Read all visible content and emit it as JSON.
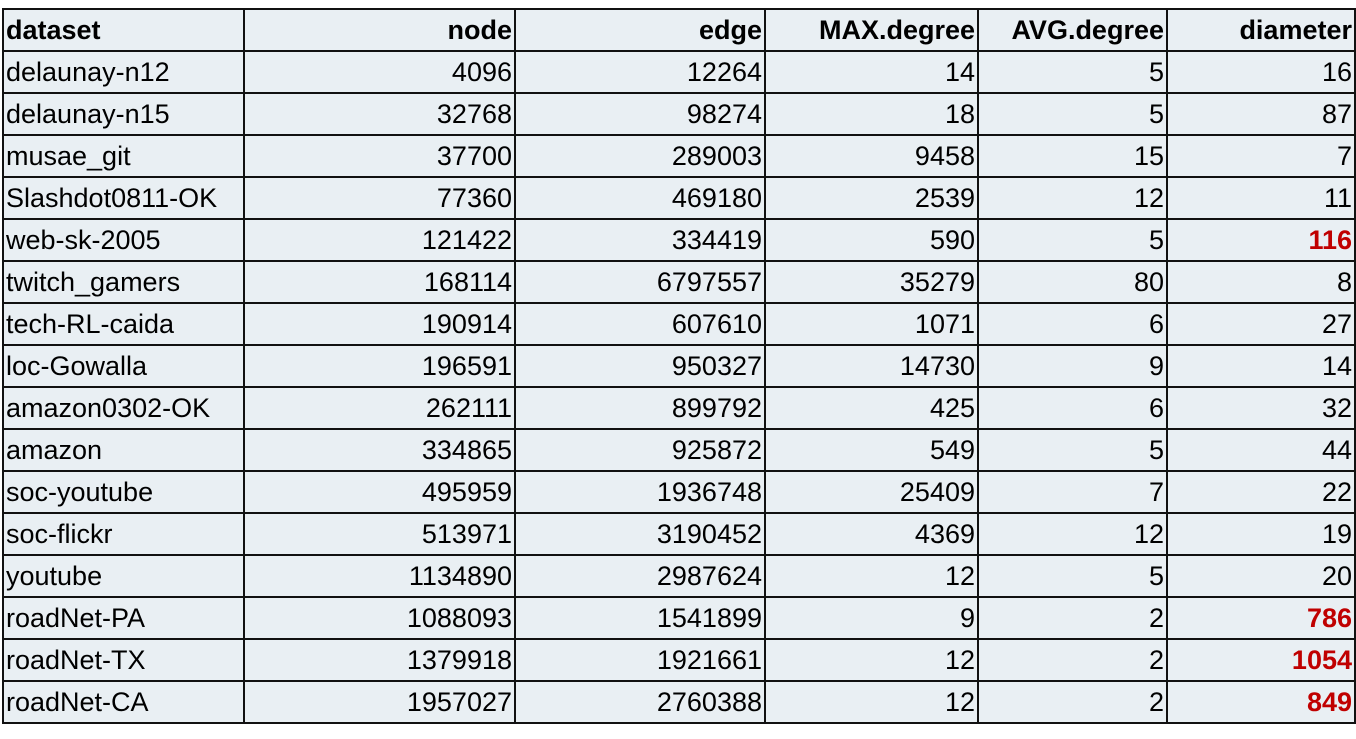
{
  "table": {
    "headers": [
      "dataset",
      "node",
      "edge",
      "MAX.degree",
      "AVG.degree",
      "diameter"
    ],
    "rows": [
      {
        "cells": [
          "delaunay-n12",
          "4096",
          "12264",
          "14",
          "5",
          "16"
        ],
        "highlight": false
      },
      {
        "cells": [
          "delaunay-n15",
          "32768",
          "98274",
          "18",
          "5",
          "87"
        ],
        "highlight": false
      },
      {
        "cells": [
          "musae_git",
          "37700",
          "289003",
          "9458",
          "15",
          "7"
        ],
        "highlight": false
      },
      {
        "cells": [
          "Slashdot0811-OK",
          "77360",
          "469180",
          "2539",
          "12",
          "11"
        ],
        "highlight": false
      },
      {
        "cells": [
          "web-sk-2005",
          "121422",
          "334419",
          "590",
          "5",
          "116"
        ],
        "highlight": true
      },
      {
        "cells": [
          "twitch_gamers",
          "168114",
          "6797557",
          "35279",
          "80",
          "8"
        ],
        "highlight": false
      },
      {
        "cells": [
          "tech-RL-caida",
          "190914",
          "607610",
          "1071",
          "6",
          "27"
        ],
        "highlight": false
      },
      {
        "cells": [
          "loc-Gowalla",
          "196591",
          "950327",
          "14730",
          "9",
          "14"
        ],
        "highlight": false
      },
      {
        "cells": [
          "amazon0302-OK",
          "262111",
          "899792",
          "425",
          "6",
          "32"
        ],
        "highlight": false
      },
      {
        "cells": [
          "amazon",
          "334865",
          "925872",
          "549",
          "5",
          "44"
        ],
        "highlight": false
      },
      {
        "cells": [
          "soc-youtube",
          "495959",
          "1936748",
          "25409",
          "7",
          "22"
        ],
        "highlight": false
      },
      {
        "cells": [
          "soc-flickr",
          "513971",
          "3190452",
          "4369",
          "12",
          "19"
        ],
        "highlight": false
      },
      {
        "cells": [
          "youtube",
          "1134890",
          "2987624",
          "12",
          "5",
          "20"
        ],
        "highlight": false
      },
      {
        "cells": [
          "roadNet-PA",
          "1088093",
          "1541899",
          "9",
          "2",
          "786"
        ],
        "highlight": true
      },
      {
        "cells": [
          "roadNet-TX",
          "1379918",
          "1921661",
          "12",
          "2",
          "1054"
        ],
        "highlight": true
      },
      {
        "cells": [
          "roadNet-CA",
          "1957027",
          "2760388",
          "12",
          "2",
          "849"
        ],
        "highlight": true
      }
    ]
  },
  "colors": {
    "cell_background": "#e9eff3",
    "border": "#111111",
    "highlight_text": "#c00000"
  }
}
